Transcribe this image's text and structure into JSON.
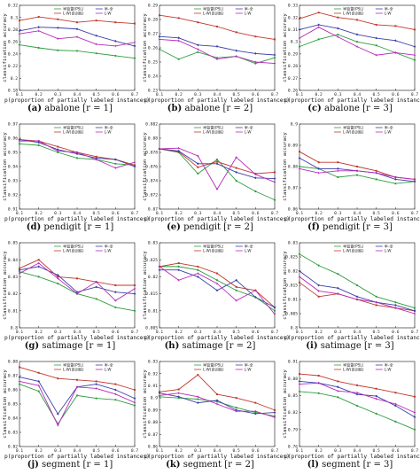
{
  "colors": {
    "series1": "#2e9e3f",
    "series2": "#c0392b",
    "series3": "#3b3fa8",
    "series4": "#b829b8"
  },
  "legend_entries": [
    "半监督(PSL)",
    "半-全",
    "L-W(自训练)",
    "L-W"
  ],
  "chart_data": [
    {
      "id": "a",
      "type": "line",
      "caption_letter": "(a)",
      "caption_text": "abalone [r = 1]",
      "title": "",
      "xlabel": "p(proportion of partially labeled instances)",
      "ylabel": "classification accuracy",
      "x": [
        0.1,
        0.2,
        0.3,
        0.4,
        0.5,
        0.6,
        0.7
      ],
      "xlim": [
        0.1,
        0.7
      ],
      "ylim": [
        0.18,
        0.32
      ],
      "yticks": [
        "0.18",
        "0.2",
        "0.22",
        "0.24",
        "0.26",
        "0.28",
        "0.3",
        "0.32"
      ],
      "series": [
        {
          "values": [
            0.255,
            0.25,
            0.246,
            0.245,
            0.241,
            0.237,
            0.233
          ]
        },
        {
          "values": [
            0.295,
            0.301,
            0.297,
            0.292,
            0.295,
            0.292,
            0.29
          ]
        },
        {
          "values": [
            0.278,
            0.284,
            0.283,
            0.281,
            0.27,
            0.261,
            0.253
          ]
        },
        {
          "values": [
            0.273,
            0.278,
            0.265,
            0.268,
            0.256,
            0.253,
            0.259
          ]
        }
      ]
    },
    {
      "id": "b",
      "type": "line",
      "caption_letter": "(b)",
      "caption_text": "abalone [r = 2]",
      "title": "",
      "xlabel": "p(proportion of partially labeled instances)",
      "ylabel": "classification accuracy",
      "x": [
        0.1,
        0.2,
        0.3,
        0.4,
        0.5,
        0.6,
        0.7
      ],
      "xlim": [
        0.1,
        0.7
      ],
      "ylim": [
        0.23,
        0.29
      ],
      "yticks": [
        "0.23",
        "0.24",
        "0.25",
        "0.26",
        "0.27",
        "0.28",
        "0.29"
      ],
      "series": [
        {
          "values": [
            0.259,
            0.252,
            0.257,
            0.253,
            0.254,
            0.249,
            0.253
          ]
        },
        {
          "values": [
            0.283,
            0.281,
            0.278,
            0.275,
            0.271,
            0.268,
            0.266
          ]
        },
        {
          "values": [
            0.268,
            0.267,
            0.262,
            0.261,
            0.258,
            0.256,
            0.255
          ]
        },
        {
          "values": [
            0.266,
            0.265,
            0.259,
            0.252,
            0.254,
            0.25,
            0.249
          ]
        }
      ]
    },
    {
      "id": "c",
      "type": "line",
      "caption_letter": "(c)",
      "caption_text": "abalone [r = 3]",
      "title": "",
      "xlabel": "p(proportion of partially labeled instances)",
      "ylabel": "classification accuracy",
      "x": [
        0.1,
        0.2,
        0.3,
        0.4,
        0.5,
        0.6,
        0.7
      ],
      "xlim": [
        0.1,
        0.7
      ],
      "ylim": [
        0.26,
        0.33
      ],
      "yticks": [
        "0.26",
        "0.27",
        "0.28",
        "0.29",
        "0.3",
        "0.31",
        "0.32",
        "0.33"
      ],
      "series": [
        {
          "values": [
            0.296,
            0.302,
            0.306,
            0.3,
            0.297,
            0.291,
            0.285
          ]
        },
        {
          "values": [
            0.319,
            0.324,
            0.32,
            0.318,
            0.314,
            0.313,
            0.31
          ]
        },
        {
          "values": [
            0.31,
            0.314,
            0.311,
            0.306,
            0.303,
            0.301,
            0.296
          ]
        },
        {
          "values": [
            0.303,
            0.312,
            0.304,
            0.296,
            0.289,
            0.291,
            0.289
          ]
        }
      ]
    },
    {
      "id": "d",
      "type": "line",
      "caption_letter": "(d)",
      "caption_text": "pendigit [r = 1]",
      "title": "",
      "xlabel": "p(proportion of partially labeled instances)",
      "ylabel": "classification accuracy",
      "x": [
        0.1,
        0.2,
        0.3,
        0.4,
        0.5,
        0.6,
        0.7
      ],
      "xlim": [
        0.1,
        0.7
      ],
      "ylim": [
        0.91,
        0.97
      ],
      "yticks": [
        "0.91",
        "0.92",
        "0.93",
        "0.94",
        "0.95",
        "0.96",
        "0.97"
      ],
      "series": [
        {
          "values": [
            0.956,
            0.955,
            0.95,
            0.946,
            0.945,
            0.942,
            0.941
          ]
        },
        {
          "values": [
            0.959,
            0.958,
            0.954,
            0.95,
            0.947,
            0.945,
            0.941
          ]
        },
        {
          "values": [
            0.959,
            0.957,
            0.952,
            0.949,
            0.946,
            0.945,
            0.94
          ]
        },
        {
          "values": [
            0.958,
            0.958,
            0.951,
            0.95,
            0.945,
            0.939,
            0.943
          ]
        }
      ]
    },
    {
      "id": "e",
      "type": "line",
      "caption_letter": "(e)",
      "caption_text": "pendigit [r = 2]",
      "title": "",
      "xlabel": "p(proportion of partially labeled instances)",
      "ylabel": "classification accuracy",
      "x": [
        0.1,
        0.2,
        0.3,
        0.4,
        0.5,
        0.6,
        0.7
      ],
      "xlim": [
        0.1,
        0.7
      ],
      "ylim": [
        0.87,
        0.882
      ],
      "yticks": [
        "0.87",
        "0.872",
        "0.874",
        "0.876",
        "0.878",
        "0.88",
        "0.882"
      ],
      "series": [
        {
          "values": [
            0.8785,
            0.878,
            0.875,
            0.877,
            0.874,
            0.8725,
            0.8713
          ]
        },
        {
          "values": [
            0.8785,
            0.8781,
            0.8759,
            0.8767,
            0.8758,
            0.875,
            0.8752
          ]
        },
        {
          "values": [
            0.8785,
            0.8782,
            0.8764,
            0.8764,
            0.8752,
            0.8744,
            0.8743
          ]
        },
        {
          "values": [
            0.8785,
            0.8786,
            0.8775,
            0.8728,
            0.8773,
            0.8749,
            0.8738
          ]
        }
      ]
    },
    {
      "id": "f",
      "type": "line",
      "caption_letter": "(f)",
      "caption_text": "pendigit [r = 3]",
      "title": "",
      "xlabel": "p(proportion of partially labeled instances)",
      "ylabel": "classification accuracy",
      "x": [
        0.1,
        0.2,
        0.3,
        0.4,
        0.5,
        0.6,
        0.7
      ],
      "xlim": [
        0.1,
        0.7
      ],
      "ylim": [
        0.86,
        0.9
      ],
      "yticks": [
        "0.86",
        "0.87",
        "0.88",
        "0.89",
        "0.9"
      ],
      "series": [
        {
          "values": [
            0.88,
            0.879,
            0.875,
            0.876,
            0.874,
            0.872,
            0.873
          ]
        },
        {
          "values": [
            0.887,
            0.882,
            0.882,
            0.88,
            0.878,
            0.875,
            0.874
          ]
        },
        {
          "values": [
            0.884,
            0.879,
            0.879,
            0.878,
            0.877,
            0.874,
            0.873
          ]
        },
        {
          "values": [
            0.879,
            0.877,
            0.878,
            0.878,
            0.877,
            0.875,
            0.874
          ]
        }
      ]
    },
    {
      "id": "g",
      "type": "line",
      "caption_letter": "(g)",
      "caption_text": "satimage [r = 1]",
      "title": "",
      "xlabel": "p(proportion of partially labeled instances)",
      "ylabel": "classification accuracy",
      "x": [
        0.1,
        0.2,
        0.3,
        0.4,
        0.5,
        0.6,
        0.7
      ],
      "xlim": [
        0.1,
        0.7
      ],
      "ylim": [
        0.8,
        0.85
      ],
      "yticks": [
        "0.8",
        "0.81",
        "0.82",
        "0.83",
        "0.84",
        "0.85"
      ],
      "series": [
        {
          "values": [
            0.833,
            0.83,
            0.826,
            0.82,
            0.817,
            0.812,
            0.81
          ]
        },
        {
          "values": [
            0.835,
            0.84,
            0.83,
            0.829,
            0.827,
            0.825,
            0.825
          ]
        },
        {
          "values": [
            0.834,
            0.836,
            0.831,
            0.821,
            0.824,
            0.821,
            0.82
          ]
        },
        {
          "values": [
            0.832,
            0.838,
            0.829,
            0.82,
            0.827,
            0.816,
            0.823
          ]
        }
      ]
    },
    {
      "id": "h",
      "type": "line",
      "caption_letter": "(h)",
      "caption_text": "satimage [r = 2]",
      "title": "",
      "xlabel": "p(proportion of partially labeled instances)",
      "ylabel": "classification accuracy",
      "x": [
        0.1,
        0.2,
        0.3,
        0.4,
        0.5,
        0.6,
        0.7
      ],
      "xlim": [
        0.1,
        0.7
      ],
      "ylim": [
        0.805,
        0.83
      ],
      "yticks": [
        "0.805",
        "0.81",
        "0.815",
        "0.82",
        "0.825",
        "0.83"
      ],
      "series": [
        {
          "values": [
            0.823,
            0.823,
            0.822,
            0.819,
            0.816,
            0.814,
            0.81
          ]
        },
        {
          "values": [
            0.823,
            0.824,
            0.823,
            0.821,
            0.817,
            0.816,
            0.811
          ]
        },
        {
          "values": [
            0.822,
            0.822,
            0.82,
            0.816,
            0.819,
            0.814,
            0.811
          ]
        },
        {
          "values": [
            0.823,
            0.819,
            0.821,
            0.818,
            0.813,
            0.816,
            0.809
          ]
        }
      ]
    },
    {
      "id": "i",
      "type": "line",
      "caption_letter": "(i)",
      "caption_text": "satimage [r = 3]",
      "title": "",
      "xlabel": "p(proportion of partially labeled instances)",
      "ylabel": "classification accuracy",
      "x": [
        0.1,
        0.2,
        0.3,
        0.4,
        0.5,
        0.6,
        0.7
      ],
      "xlim": [
        0.1,
        0.7
      ],
      "ylim": [
        0.8,
        0.83
      ],
      "yticks": [
        "0.8",
        "0.805",
        "0.81",
        "0.815",
        "0.82",
        "0.825",
        "0.83"
      ],
      "series": [
        {
          "values": [
            0.826,
            0.822,
            0.819,
            0.815,
            0.811,
            0.809,
            0.807
          ]
        },
        {
          "values": [
            0.816,
            0.811,
            0.812,
            0.81,
            0.808,
            0.807,
            0.806
          ]
        },
        {
          "values": [
            0.82,
            0.815,
            0.814,
            0.811,
            0.809,
            0.808,
            0.806
          ]
        },
        {
          "values": [
            0.818,
            0.813,
            0.812,
            0.81,
            0.809,
            0.807,
            0.805
          ]
        }
      ]
    },
    {
      "id": "j",
      "type": "line",
      "caption_letter": "(j)",
      "caption_text": "segment [r = 1]",
      "title": "",
      "xlabel": "p(proportion of partially labeled instances)",
      "ylabel": "classification accuracy",
      "x": [
        0.1,
        0.2,
        0.3,
        0.4,
        0.5,
        0.6,
        0.7
      ],
      "xlim": [
        0.1,
        0.7
      ],
      "ylim": [
        0.82,
        0.88
      ],
      "yticks": [
        "0.82",
        "0.83",
        "0.84",
        "0.85",
        "0.86",
        "0.87",
        "0.88"
      ],
      "series": [
        {
          "values": [
            0.864,
            0.859,
            0.836,
            0.856,
            0.854,
            0.853,
            0.849
          ]
        },
        {
          "values": [
            0.876,
            0.872,
            0.868,
            0.867,
            0.866,
            0.864,
            0.86
          ]
        },
        {
          "values": [
            0.869,
            0.866,
            0.843,
            0.862,
            0.864,
            0.86,
            0.854
          ]
        },
        {
          "values": [
            0.866,
            0.863,
            0.835,
            0.862,
            0.861,
            0.857,
            0.851
          ]
        }
      ]
    },
    {
      "id": "k",
      "type": "line",
      "caption_letter": "(k)",
      "caption_text": "segment [r = 2]",
      "title": "",
      "xlabel": "p(proportion of partially labeled instances)",
      "ylabel": "classification accuracy",
      "x": [
        0.1,
        0.2,
        0.3,
        0.4,
        0.5,
        0.6,
        0.7
      ],
      "xlim": [
        0.1,
        0.7
      ],
      "ylim": [
        0.86,
        0.93
      ],
      "yticks": [
        "0.86",
        "0.87",
        "0.88",
        "0.89",
        "0.9",
        "0.91",
        "0.92",
        "0.93"
      ],
      "series": [
        {
          "values": [
            0.901,
            0.9,
            0.899,
            0.897,
            0.892,
            0.888,
            0.885
          ]
        },
        {
          "values": [
            0.905,
            0.907,
            0.919,
            0.903,
            0.9,
            0.896,
            0.89
          ]
        },
        {
          "values": [
            0.904,
            0.901,
            0.896,
            0.898,
            0.89,
            0.887,
            0.888
          ]
        },
        {
          "values": [
            0.902,
            0.904,
            0.901,
            0.895,
            0.889,
            0.889,
            0.884
          ]
        }
      ]
    },
    {
      "id": "l",
      "type": "line",
      "caption_letter": "(l)",
      "caption_text": "segment [r = 3]",
      "title": "",
      "xlabel": "p(proportion of partially labeled instances)",
      "ylabel": "classification accuracy",
      "x": [
        0.1,
        0.2,
        0.3,
        0.4,
        0.5,
        0.6,
        0.7
      ],
      "xlim": [
        0.1,
        0.7
      ],
      "ylim": [
        0.76,
        0.91
      ],
      "yticks": [
        "0.76",
        "0.79",
        "0.82",
        "0.85",
        "0.88",
        "0.91"
      ],
      "series": [
        {
          "values": [
            0.857,
            0.854,
            0.847,
            0.832,
            0.818,
            0.804,
            0.79
          ]
        },
        {
          "values": [
            0.888,
            0.885,
            0.875,
            0.868,
            0.862,
            0.855,
            0.848
          ]
        },
        {
          "values": [
            0.875,
            0.872,
            0.865,
            0.852,
            0.849,
            0.832,
            0.812
          ]
        },
        {
          "values": [
            0.87,
            0.872,
            0.858,
            0.855,
            0.844,
            0.835,
            0.82
          ]
        }
      ]
    }
  ]
}
